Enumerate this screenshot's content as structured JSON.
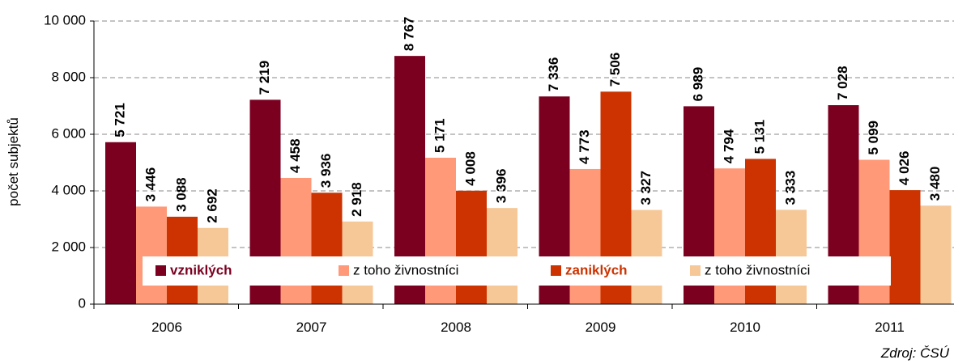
{
  "chart_data": {
    "type": "bar",
    "y_label": "počet subjektů",
    "source": "Zdroj: ČSÚ",
    "categories": [
      "2006",
      "2007",
      "2008",
      "2009",
      "2010",
      "2011"
    ],
    "series": [
      {
        "name": "vzniklých",
        "color": "#7b0020",
        "values": [
          5721,
          7219,
          8767,
          7336,
          6989,
          7028
        ],
        "value_labels": [
          "5 721",
          "7 219",
          "8 767",
          "7 336",
          "6 989",
          "7 028"
        ]
      },
      {
        "name": "z toho živnostníci",
        "color": "#ff9977",
        "values": [
          3446,
          4458,
          5171,
          4773,
          4794,
          5099
        ],
        "value_labels": [
          "3 446",
          "4 458",
          "5 171",
          "4 773",
          "4 794",
          "5 099"
        ]
      },
      {
        "name": "zaniklých",
        "color": "#cc3300",
        "values": [
          3088,
          3936,
          4008,
          7506,
          5131,
          4026
        ],
        "value_labels": [
          "3 088",
          "3 936",
          "4 008",
          "7 506",
          "5 131",
          "4 026"
        ]
      },
      {
        "name": "z toho živnostníci",
        "color": "#f6c898",
        "values": [
          2692,
          2918,
          3396,
          3327,
          3333,
          3480
        ],
        "value_labels": [
          "2 692",
          "2 918",
          "3 396",
          "3 327",
          "3 333",
          "3 480"
        ]
      }
    ],
    "ylim": [
      0,
      10000
    ],
    "yticks": [
      0,
      {
        "value": 2000,
        "label": "2 000"
      },
      {
        "value": 4000,
        "label": "4 000"
      },
      {
        "value": 6000,
        "label": "6 000"
      },
      {
        "value": 8000,
        "label": "8 000"
      },
      {
        "value": 10000,
        "label": "10 000"
      }
    ],
    "grid": true
  }
}
